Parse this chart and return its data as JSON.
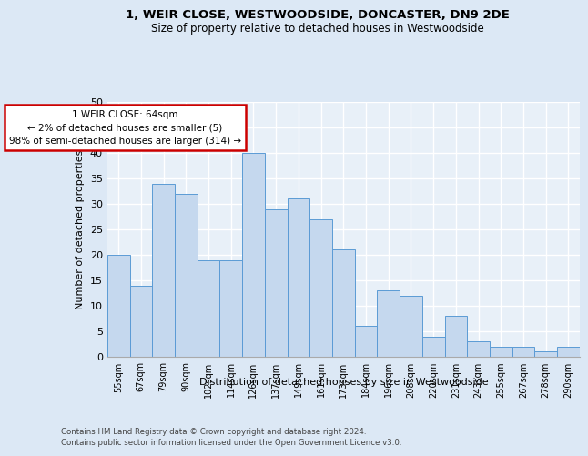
{
  "title1": "1, WEIR CLOSE, WESTWOODSIDE, DONCASTER, DN9 2DE",
  "title2": "Size of property relative to detached houses in Westwoodside",
  "xlabel": "Distribution of detached houses by size in Westwoodside",
  "ylabel": "Number of detached properties",
  "footer1": "Contains HM Land Registry data © Crown copyright and database right 2024.",
  "footer2": "Contains public sector information licensed under the Open Government Licence v3.0.",
  "annotation_line1": "1 WEIR CLOSE: 64sqm",
  "annotation_line2": "← 2% of detached houses are smaller (5)",
  "annotation_line3": "98% of semi-detached houses are larger (314) →",
  "bar_labels": [
    "55sqm",
    "67sqm",
    "79sqm",
    "90sqm",
    "102sqm",
    "114sqm",
    "126sqm",
    "137sqm",
    "149sqm",
    "161sqm",
    "173sqm",
    "184sqm",
    "196sqm",
    "208sqm",
    "220sqm",
    "231sqm",
    "243sqm",
    "255sqm",
    "267sqm",
    "278sqm",
    "290sqm"
  ],
  "bar_values": [
    20,
    14,
    34,
    32,
    19,
    19,
    40,
    29,
    31,
    27,
    21,
    6,
    13,
    12,
    4,
    8,
    3,
    2,
    2,
    1,
    2
  ],
  "bar_color": "#c5d8ee",
  "bar_edge_color": "#5b9bd5",
  "annotation_box_color": "#ffffff",
  "annotation_box_edge": "#cc0000",
  "background_color": "#dce8f5",
  "plot_bg_color": "#e8f0f8",
  "grid_color": "#ffffff",
  "ylim": [
    0,
    50
  ],
  "yticks": [
    0,
    5,
    10,
    15,
    20,
    25,
    30,
    35,
    40,
    45,
    50
  ]
}
